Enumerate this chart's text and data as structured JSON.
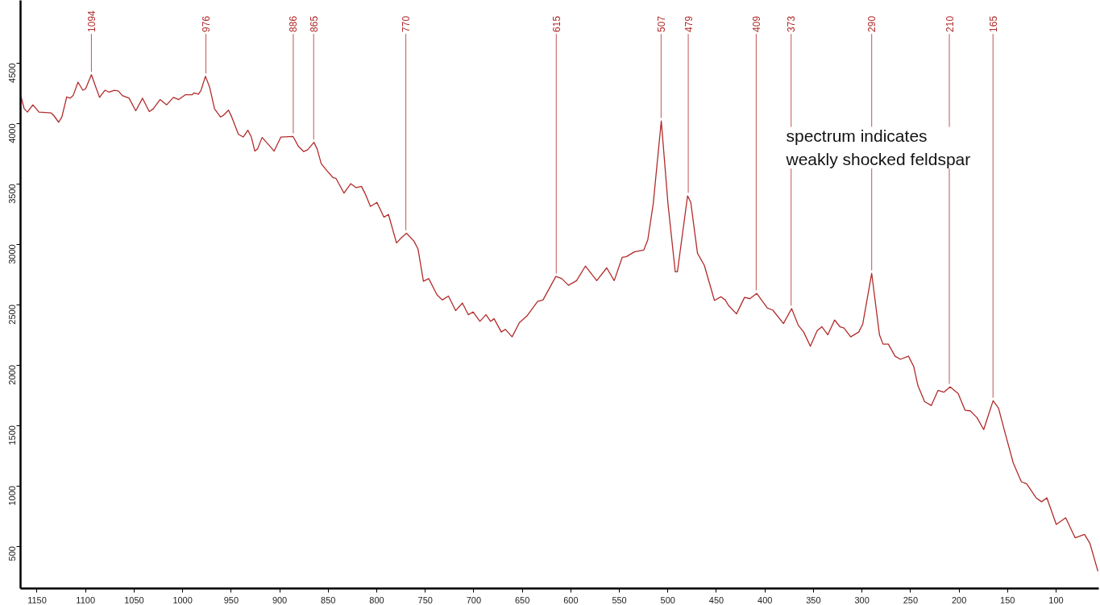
{
  "chart_data": {
    "type": "line",
    "xlim": [
      1167,
      56
    ],
    "ylim": [
      150,
      5020
    ],
    "xticks": [
      1150,
      1100,
      1050,
      1000,
      950,
      900,
      850,
      800,
      750,
      700,
      650,
      600,
      550,
      500,
      450,
      400,
      350,
      300,
      250,
      200,
      150,
      100
    ],
    "yticks": [
      500,
      1000,
      1500,
      2000,
      2500,
      3000,
      3500,
      4000,
      4500
    ],
    "grid": false,
    "marker": "none",
    "line_style": "solid",
    "series": [
      {
        "color": "#b22b2b",
        "x": [
          1166.5,
          1163.2,
          1159.9,
          1154.3,
          1148.0,
          1135.5,
          1132.7,
          1127.7,
          1124.4,
          1119.4,
          1116.1,
          1112.8,
          1107.8,
          1102.8,
          1100.0,
          1094.0,
          1089.8,
          1085.6,
          1080.1,
          1076.0,
          1070.4,
          1066.3,
          1062.1,
          1055.2,
          1048.3,
          1041.3,
          1034.4,
          1030.3,
          1023.3,
          1016.4,
          1009.5,
          1004.0,
          997.0,
          990.1,
          988.2,
          983.7,
          981.0,
          976.5,
          972.1,
          967.1,
          961.0,
          958.3,
          952.7,
          949.4,
          942.5,
          937.5,
          932.8,
          929.2,
          925.6,
          922.8,
          918.1,
          911.2,
          905.7,
          898.7,
          886.3,
          880.7,
          875.2,
          871.1,
          864.7,
          861.4,
          857.2,
          851.7,
          844.8,
          842.0,
          833.7,
          826.8,
          821.2,
          815.7,
          811.5,
          806.5,
          799.8,
          792.6,
          787.9,
          779.6,
          775.4,
          769.3,
          761.6,
          757.4,
          751.9,
          746.4,
          738.0,
          732.5,
          726.1,
          718.7,
          711.7,
          705.6,
          700.7,
          693.7,
          687.4,
          682.7,
          679.1,
          671.6,
          667.4,
          660.5,
          653.0,
          645.3,
          634.2,
          628.7,
          615.4,
          609.3,
          602.4,
          594.1,
          584.9,
          573.3,
          563.0,
          555.3,
          547.0,
          542.8,
          534.5,
          524.8,
          520.7,
          515.1,
          506.8,
          499.9,
          492.4,
          490.2,
          479.7,
          476.4,
          469.5,
          462.5,
          452.0,
          445.4,
          440.9,
          437.6,
          429.3,
          421.0,
          415.5,
          408.5,
          397.5,
          391.9,
          380.9,
          372.5,
          365.6,
          360.1,
          353.2,
          346.2,
          341.3,
          335.2,
          328.2,
          322.7,
          318.6,
          311.6,
          303.3,
          299.2,
          290.0,
          282.0,
          278.4,
          272.9,
          265.9,
          260.4,
          252.1,
          246.6,
          242.4,
          235.5,
          228.6,
          221.6,
          215.5,
          209.2,
          200.9,
          193.9,
          188.4,
          181.5,
          174.6,
          164.9,
          159.3,
          152.4,
          144.1,
          135.8,
          130.3,
          120.6,
          115.0,
          109.5,
          99.8,
          90.1,
          80.4,
          70.7,
          65.2,
          56.9
        ],
        "values": [
          4221,
          4122,
          4095,
          4155,
          4095,
          4088,
          4066,
          4011,
          4055,
          4221,
          4210,
          4232,
          4343,
          4276,
          4288,
          4405,
          4310,
          4217,
          4276,
          4261,
          4276,
          4270,
          4232,
          4210,
          4106,
          4210,
          4099,
          4122,
          4199,
          4155,
          4217,
          4199,
          4239,
          4239,
          4254,
          4243,
          4276,
          4392,
          4299,
          4122,
          4055,
          4066,
          4111,
          4055,
          3911,
          3889,
          3945,
          3889,
          3772,
          3790,
          3885,
          3823,
          3772,
          3889,
          3894,
          3812,
          3768,
          3783,
          3845,
          3790,
          3668,
          3613,
          3551,
          3546,
          3424,
          3502,
          3469,
          3480,
          3413,
          3314,
          3347,
          3225,
          3247,
          3011,
          3048,
          3092,
          3026,
          2960,
          2694,
          2716,
          2583,
          2539,
          2572,
          2451,
          2513,
          2417,
          2440,
          2362,
          2417,
          2362,
          2384,
          2274,
          2296,
          2234,
          2351,
          2406,
          2528,
          2539,
          2734,
          2716,
          2661,
          2699,
          2820,
          2699,
          2805,
          2699,
          2893,
          2898,
          2938,
          2953,
          3037,
          3336,
          4022,
          3336,
          2772,
          2772,
          3402,
          3347,
          2926,
          2827,
          2535,
          2566,
          2539,
          2495,
          2424,
          2561,
          2550,
          2594,
          2473,
          2455,
          2344,
          2468,
          2329,
          2274,
          2156,
          2285,
          2318,
          2251,
          2373,
          2318,
          2307,
          2234,
          2274,
          2340,
          2760,
          2251,
          2174,
          2174,
          2074,
          2048,
          2074,
          1986,
          1831,
          1698,
          1665,
          1791,
          1776,
          1820,
          1765,
          1627,
          1621,
          1565,
          1466,
          1705,
          1643,
          1433,
          1189,
          1034,
          1016,
          901,
          868,
          901,
          680,
          735,
          570,
          598,
          525,
          293
        ]
      }
    ],
    "annotations": [
      {
        "text": "1094",
        "x": 1094,
        "y": 4405
      },
      {
        "text": "976",
        "x": 976,
        "y": 4392
      },
      {
        "text": "886",
        "x": 886,
        "y": 3894
      },
      {
        "text": "865",
        "x": 865,
        "y": 3845
      },
      {
        "text": "770",
        "x": 770,
        "y": 3092
      },
      {
        "text": "615",
        "x": 615,
        "y": 2734
      },
      {
        "text": "507",
        "x": 507,
        "y": 4022
      },
      {
        "text": "479",
        "x": 479,
        "y": 3402
      },
      {
        "text": "409",
        "x": 409,
        "y": 2594
      },
      {
        "text": "373",
        "x": 373,
        "y": 2468
      },
      {
        "text": "290",
        "x": 290,
        "y": 2760
      },
      {
        "text": "210",
        "x": 210,
        "y": 1820
      },
      {
        "text": "165",
        "x": 165,
        "y": 1705
      },
      "spectrum indicates\nweakly shocked feldspar"
    ]
  }
}
